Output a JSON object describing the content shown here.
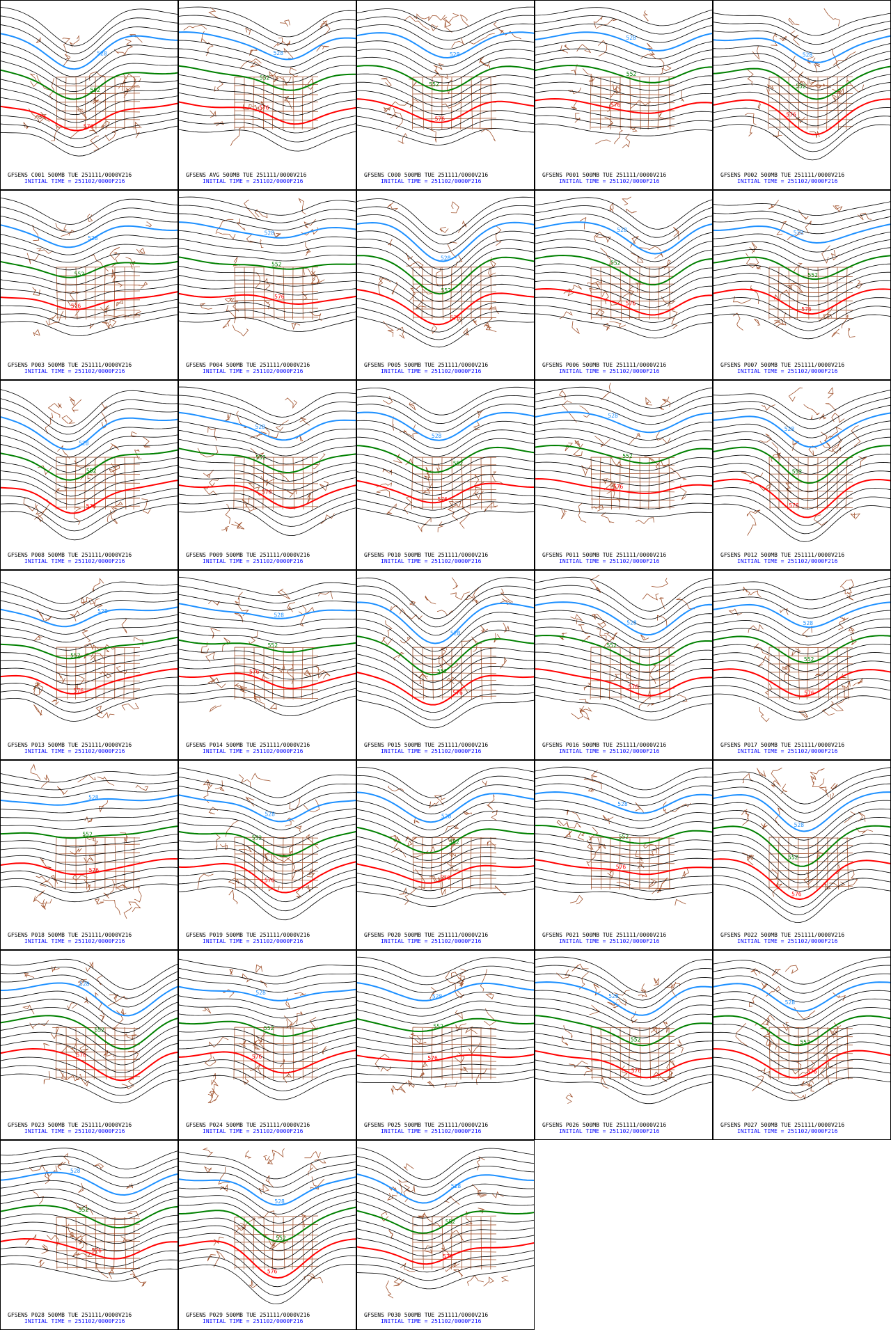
{
  "contours": [
    {
      "label": "528",
      "color": "#1e90ff"
    },
    {
      "label": "552",
      "color": "#008000"
    },
    {
      "label": "576",
      "color": "#ff0000"
    }
  ],
  "initial_time": "INITIAL TIME = 251102/0000F216",
  "panels": [
    {
      "title": "GFSENS C001 500MB TUE 251111/0000V216"
    },
    {
      "title": "GFSENS AVG 500MB TUE 251111/0000V216"
    },
    {
      "title": "GFSENS C000 500MB TUE 251111/0000V216"
    },
    {
      "title": "GFSENS P001 500MB TUE 251111/0000V216"
    },
    {
      "title": "GFSENS P002 500MB TUE 251111/0000V216"
    },
    {
      "title": "GFSENS P003 500MB TUE 251111/0000V216"
    },
    {
      "title": "GFSENS P004 500MB TUE 251111/0000V216"
    },
    {
      "title": "GFSENS P005 500MB TUE 251111/0000V216"
    },
    {
      "title": "GFSENS P006 500MB TUE 251111/0000V216"
    },
    {
      "title": "GFSENS P007 500MB TUE 251111/0000V216"
    },
    {
      "title": "GFSENS P008 500MB TUE 251111/0000V216"
    },
    {
      "title": "GFSENS P009 500MB TUE 251111/0000V216"
    },
    {
      "title": "GFSENS P010 500MB TUE 251111/0000V216"
    },
    {
      "title": "GFSENS P011 500MB TUE 251111/0000V216"
    },
    {
      "title": "GFSENS P012 500MB TUE 251111/0000V216"
    },
    {
      "title": "GFSENS P013 500MB TUE 251111/0000V216"
    },
    {
      "title": "GFSENS P014 500MB TUE 251111/0000V216"
    },
    {
      "title": "GFSENS P015 500MB TUE 251111/0000V216"
    },
    {
      "title": "GFSENS P016 500MB TUE 251111/0000V216"
    },
    {
      "title": "GFSENS P017 500MB TUE 251111/0000V216"
    },
    {
      "title": "GFSENS P018 500MB TUE 251111/0000V216"
    },
    {
      "title": "GFSENS P019 500MB TUE 251111/0000V216"
    },
    {
      "title": "GFSENS P020 500MB TUE 251111/0000V216"
    },
    {
      "title": "GFSENS P021 500MB TUE 251111/0000V216"
    },
    {
      "title": "GFSENS P022 500MB TUE 251111/0000V216"
    },
    {
      "title": "GFSENS P023 500MB TUE 251111/0000V216"
    },
    {
      "title": "GFSENS P024 500MB TUE 251111/0000V216"
    },
    {
      "title": "GFSENS P025 500MB TUE 251111/0000V216"
    },
    {
      "title": "GFSENS P026 500MB TUE 251111/0000V216"
    },
    {
      "title": "GFSENS P027 500MB TUE 251111/0000V216"
    },
    {
      "title": "GFSENS P028 500MB TUE 251111/0000V216"
    },
    {
      "title": "GFSENS P029 500MB TUE 251111/0000V216"
    },
    {
      "title": "GFSENS P030 500MB TUE 251111/0000V216"
    }
  ]
}
